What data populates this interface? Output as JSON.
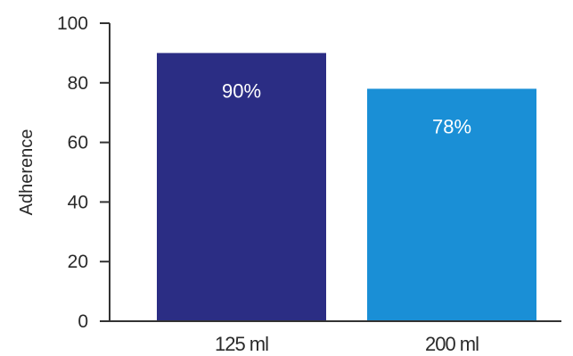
{
  "chart_data": {
    "type": "bar",
    "categories": [
      "125 ml",
      "200 ml"
    ],
    "values": [
      90,
      78
    ],
    "data_labels": [
      "90%",
      "78%"
    ],
    "colors": [
      "#2b2d84",
      "#1a8fd6"
    ],
    "title": "",
    "xlabel": "",
    "ylabel": "Adherence",
    "ylim": [
      0,
      100
    ],
    "yticks": [
      0,
      20,
      40,
      60,
      80,
      100
    ],
    "ytick_labels": [
      "0",
      "20",
      "40",
      "60",
      "80",
      "100"
    ],
    "axis_color": "#333333",
    "grid": false,
    "legend": "none"
  }
}
